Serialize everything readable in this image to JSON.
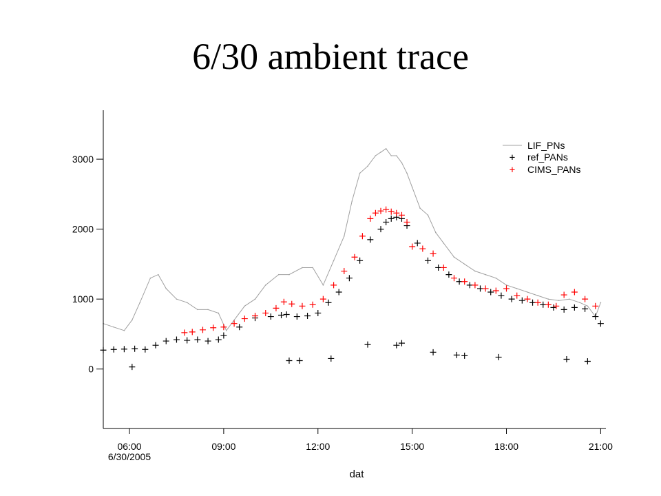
{
  "slide": {
    "title": "6/30 ambient trace"
  },
  "colors": {
    "lif": "#a0a0a0",
    "ref": "#000000",
    "cims": "#ff0000",
    "axis": "#000000"
  },
  "chart_data": {
    "type": "scatter",
    "title": "",
    "xlabel": "dat",
    "ylabel": "",
    "x_ticks": [
      "06:00",
      "09:00",
      "12:00",
      "15:00",
      "18:00",
      "21:00"
    ],
    "x_sublabel": "6/30/2005",
    "y_ticks": [
      0,
      1000,
      2000,
      3000
    ],
    "xlim": [
      "05:10",
      "21:10"
    ],
    "ylim": [
      -850,
      3700
    ],
    "legend": {
      "position": "top-right",
      "entries": [
        "LIF_PNs",
        "ref_PANs",
        "CIMS_PANs"
      ]
    },
    "series": [
      {
        "name": "LIF_PNs",
        "style": "line",
        "x": [
          "05:10",
          "05:30",
          "05:50",
          "06:05",
          "06:20",
          "06:40",
          "06:55",
          "07:10",
          "07:30",
          "07:50",
          "08:10",
          "08:30",
          "08:50",
          "09:05",
          "09:20",
          "09:40",
          "10:00",
          "10:20",
          "10:45",
          "11:05",
          "11:30",
          "11:50",
          "12:10",
          "12:30",
          "12:50",
          "13:05",
          "13:20",
          "13:35",
          "13:50",
          "14:00",
          "14:10",
          "14:20",
          "14:30",
          "14:40",
          "14:50",
          "15:00",
          "15:15",
          "15:30",
          "15:45",
          "16:00",
          "16:20",
          "16:40",
          "17:00",
          "17:20",
          "17:40",
          "18:00",
          "18:20",
          "18:40",
          "19:00",
          "19:20",
          "19:40",
          "20:00",
          "20:20",
          "20:35",
          "20:50",
          "21:00"
        ],
        "y": [
          650,
          600,
          550,
          700,
          950,
          1300,
          1350,
          1150,
          1000,
          950,
          850,
          850,
          800,
          550,
          700,
          900,
          1000,
          1200,
          1350,
          1350,
          1450,
          1450,
          1200,
          1550,
          1900,
          2400,
          2800,
          2900,
          3050,
          3100,
          3150,
          3050,
          3050,
          2950,
          2800,
          2600,
          2300,
          2200,
          1950,
          1800,
          1600,
          1500,
          1400,
          1350,
          1300,
          1200,
          1150,
          1100,
          1050,
          1000,
          980,
          1000,
          950,
          900,
          750,
          950
        ]
      },
      {
        "name": "ref_PANs",
        "style": "plus",
        "x": [
          "05:10",
          "05:30",
          "05:50",
          "06:10",
          "06:30",
          "06:50",
          "07:10",
          "07:30",
          "07:50",
          "08:10",
          "08:30",
          "08:50",
          "09:00",
          "09:30",
          "10:00",
          "10:30",
          "10:50",
          "11:00",
          "11:20",
          "11:40",
          "12:00",
          "12:20",
          "12:40",
          "13:00",
          "13:20",
          "13:40",
          "14:00",
          "14:10",
          "14:20",
          "14:30",
          "14:40",
          "14:50",
          "15:10",
          "15:30",
          "15:50",
          "16:10",
          "16:30",
          "16:50",
          "17:10",
          "17:30",
          "17:50",
          "18:10",
          "18:30",
          "18:50",
          "19:10",
          "19:30",
          "19:50",
          "20:10",
          "20:30",
          "20:50",
          "21:00",
          "06:05",
          "11:05",
          "11:25",
          "12:25",
          "13:35",
          "14:30",
          "14:40",
          "15:40",
          "16:25",
          "16:40",
          "17:45",
          "19:55",
          "20:35"
        ],
        "y": [
          270,
          280,
          285,
          290,
          280,
          340,
          400,
          420,
          410,
          420,
          400,
          420,
          480,
          600,
          730,
          750,
          770,
          780,
          750,
          760,
          800,
          950,
          1100,
          1300,
          1550,
          1850,
          2000,
          2100,
          2150,
          2170,
          2150,
          2050,
          1800,
          1550,
          1450,
          1350,
          1250,
          1200,
          1150,
          1100,
          1050,
          1000,
          980,
          950,
          920,
          880,
          850,
          880,
          860,
          750,
          650,
          30,
          120,
          120,
          150,
          350,
          340,
          370,
          240,
          200,
          190,
          170,
          140,
          110
        ]
      },
      {
        "name": "CIMS_PANs",
        "style": "plus",
        "x": [
          "07:45",
          "08:00",
          "08:20",
          "08:40",
          "09:00",
          "09:20",
          "09:40",
          "10:00",
          "10:20",
          "10:40",
          "10:55",
          "11:10",
          "11:30",
          "11:50",
          "12:10",
          "12:30",
          "12:50",
          "13:10",
          "13:25",
          "13:40",
          "13:50",
          "14:00",
          "14:10",
          "14:20",
          "14:30",
          "14:40",
          "14:50",
          "15:00",
          "15:20",
          "15:40",
          "16:00",
          "16:20",
          "16:40",
          "17:00",
          "17:20",
          "17:40",
          "18:00",
          "18:20",
          "18:40",
          "19:00",
          "19:20",
          "19:35",
          "19:50",
          "20:10",
          "20:30",
          "20:50"
        ],
        "y": [
          520,
          530,
          560,
          590,
          600,
          650,
          720,
          760,
          800,
          870,
          960,
          930,
          900,
          920,
          1000,
          1200,
          1400,
          1600,
          1900,
          2150,
          2230,
          2260,
          2280,
          2250,
          2230,
          2200,
          2100,
          1750,
          1720,
          1650,
          1450,
          1300,
          1250,
          1200,
          1150,
          1120,
          1150,
          1050,
          1000,
          950,
          920,
          900,
          1060,
          1100,
          1000,
          900
        ]
      }
    ]
  }
}
